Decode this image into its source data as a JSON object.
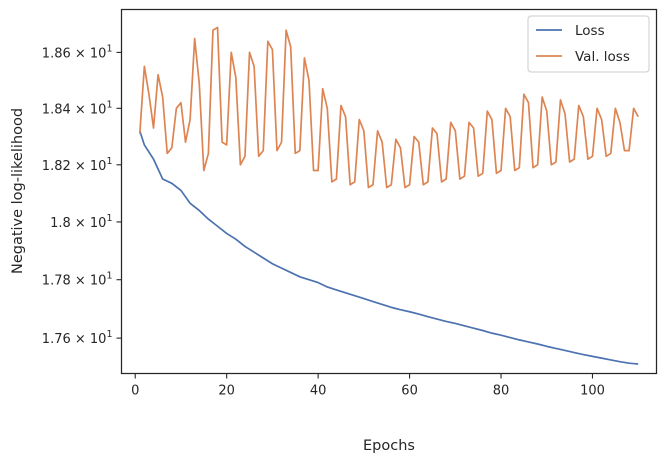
{
  "chart_data": {
    "type": "line",
    "xlabel": "Epochs",
    "ylabel": "Negative log-likelihood",
    "xlim": [
      -3,
      114
    ],
    "ylim": [
      17.48,
      18.755
    ],
    "x_ticks": [
      0,
      20,
      40,
      60,
      80,
      100
    ],
    "x_tick_labels": [
      "0",
      "20",
      "40",
      "60",
      "80",
      "100"
    ],
    "y_ticks": [
      17.6,
      17.8,
      18.0,
      18.2,
      18.4,
      18.6
    ],
    "y_tick_labels": [
      {
        "base": "1.76 × 10",
        "exp": "1"
      },
      {
        "base": "1.78 × 10",
        "exp": "1"
      },
      {
        "base": "1.8 × 10",
        "exp": "1"
      },
      {
        "base": "1.82 × 10",
        "exp": "1"
      },
      {
        "base": "1.84 × 10",
        "exp": "1"
      },
      {
        "base": "1.86 × 10",
        "exp": "1"
      }
    ],
    "y_scale": "log",
    "grid": false,
    "legend_position": "top-right",
    "series": [
      {
        "name": "Loss",
        "color": "#4c72b0",
        "x": [
          1,
          2,
          4,
          6,
          8,
          10,
          12,
          14,
          16,
          18,
          20,
          22,
          24,
          26,
          28,
          30,
          32,
          34,
          36,
          38,
          40,
          42,
          44,
          46,
          48,
          50,
          52,
          54,
          56,
          58,
          60,
          62,
          64,
          66,
          68,
          70,
          72,
          74,
          76,
          78,
          80,
          82,
          84,
          86,
          88,
          90,
          92,
          94,
          96,
          98,
          100,
          102,
          104,
          106,
          108,
          110
        ],
        "values": [
          18.32,
          18.27,
          18.22,
          18.15,
          18.135,
          18.11,
          18.065,
          18.04,
          18.01,
          17.985,
          17.96,
          17.94,
          17.915,
          17.895,
          17.875,
          17.855,
          17.84,
          17.825,
          17.81,
          17.8,
          17.79,
          17.775,
          17.765,
          17.755,
          17.745,
          17.735,
          17.725,
          17.715,
          17.705,
          17.697,
          17.69,
          17.682,
          17.673,
          17.665,
          17.657,
          17.65,
          17.642,
          17.634,
          17.626,
          17.617,
          17.61,
          17.602,
          17.594,
          17.587,
          17.58,
          17.572,
          17.565,
          17.558,
          17.551,
          17.544,
          17.538,
          17.532,
          17.526,
          17.52,
          17.515,
          17.512
        ]
      },
      {
        "name": "Val. loss",
        "color": "#dd8452",
        "x": [
          1,
          2,
          3,
          4,
          5,
          6,
          7,
          8,
          9,
          10,
          11,
          12,
          13,
          14,
          15,
          16,
          17,
          18,
          19,
          20,
          21,
          22,
          23,
          24,
          25,
          26,
          27,
          28,
          29,
          30,
          31,
          32,
          33,
          34,
          35,
          36,
          37,
          38,
          39,
          40,
          41,
          42,
          43,
          44,
          45,
          46,
          47,
          48,
          49,
          50,
          51,
          52,
          53,
          54,
          55,
          56,
          57,
          58,
          59,
          60,
          61,
          62,
          63,
          64,
          65,
          66,
          67,
          68,
          69,
          70,
          71,
          72,
          73,
          74,
          75,
          76,
          77,
          78,
          79,
          80,
          81,
          82,
          83,
          84,
          85,
          86,
          87,
          88,
          89,
          90,
          91,
          92,
          93,
          94,
          95,
          96,
          97,
          98,
          99,
          100,
          101,
          102,
          103,
          104,
          105,
          106,
          107,
          108,
          109,
          110
        ],
        "values": [
          18.31,
          18.55,
          18.45,
          18.33,
          18.52,
          18.44,
          18.24,
          18.26,
          18.4,
          18.42,
          18.28,
          18.36,
          18.65,
          18.49,
          18.18,
          18.24,
          18.68,
          18.69,
          18.28,
          18.27,
          18.6,
          18.51,
          18.2,
          18.23,
          18.6,
          18.55,
          18.23,
          18.25,
          18.64,
          18.61,
          18.25,
          18.28,
          18.68,
          18.62,
          18.24,
          18.25,
          18.58,
          18.5,
          18.18,
          18.18,
          18.47,
          18.4,
          18.14,
          18.15,
          18.41,
          18.37,
          18.13,
          18.14,
          18.36,
          18.32,
          18.12,
          18.13,
          18.32,
          18.28,
          18.12,
          18.13,
          18.29,
          18.26,
          18.12,
          18.13,
          18.3,
          18.28,
          18.13,
          18.14,
          18.33,
          18.31,
          18.14,
          18.15,
          18.35,
          18.32,
          18.15,
          18.16,
          18.35,
          18.33,
          18.16,
          18.17,
          18.39,
          18.36,
          18.17,
          18.18,
          18.4,
          18.37,
          18.18,
          18.19,
          18.45,
          18.42,
          18.19,
          18.2,
          18.44,
          18.39,
          18.2,
          18.21,
          18.43,
          18.38,
          18.21,
          18.22,
          18.41,
          18.37,
          18.22,
          18.23,
          18.4,
          18.36,
          18.23,
          18.24,
          18.4,
          18.35,
          18.25,
          18.25,
          18.4,
          18.37
        ]
      }
    ]
  }
}
